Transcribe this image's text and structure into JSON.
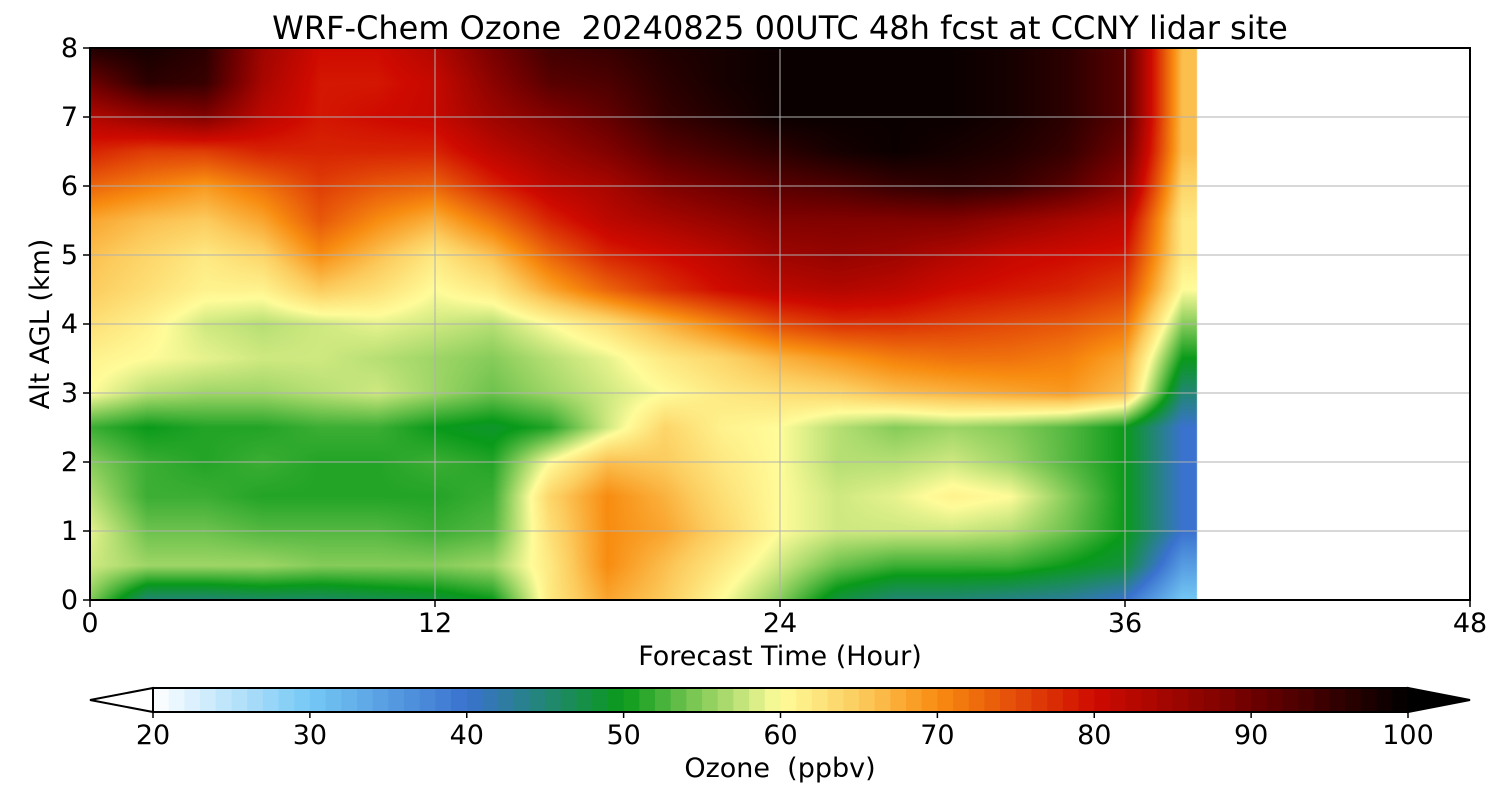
{
  "chart_data": {
    "type": "heatmap",
    "title": "WRF-Chem Ozone  20240825 00UTC 48h fcst at CCNY lidar site",
    "xlabel": "Forecast Time (Hour)",
    "ylabel": "Alt AGL (km)",
    "xlim": [
      0,
      48
    ],
    "ylim": [
      0,
      8
    ],
    "x_ticks": [
      0,
      12,
      24,
      36,
      48
    ],
    "y_ticks": [
      0,
      1,
      2,
      3,
      4,
      5,
      6,
      7,
      8
    ],
    "grid": true,
    "data_end_hour": 38.5,
    "z_label": "Ozone  (ppbv)",
    "z_range": [
      20,
      100
    ],
    "colorbar_ticks": [
      20,
      30,
      40,
      50,
      60,
      70,
      80,
      90,
      100
    ],
    "colorbar_extend": "both",
    "colorbar_stops": [
      {
        "v": 20,
        "c": "#ffffff"
      },
      {
        "v": 30,
        "c": "#74c8f5"
      },
      {
        "v": 40,
        "c": "#3a72cf"
      },
      {
        "v": 50,
        "c": "#0a9a1a"
      },
      {
        "v": 55,
        "c": "#86cc5a"
      },
      {
        "v": 60,
        "c": "#fffc9a"
      },
      {
        "v": 65,
        "c": "#fccc5e"
      },
      {
        "v": 70,
        "c": "#f88c10"
      },
      {
        "v": 80,
        "c": "#cf0a00"
      },
      {
        "v": 90,
        "c": "#6e0000"
      },
      {
        "v": 100,
        "c": "#000000"
      }
    ],
    "z_hours": [
      0,
      2,
      4,
      6,
      8,
      10,
      12,
      14,
      16,
      18,
      20,
      22,
      24,
      26,
      28,
      30,
      32,
      34,
      36,
      38
    ],
    "z_heights_km": [
      0,
      0.5,
      1,
      1.5,
      2,
      2.5,
      3,
      3.5,
      4,
      4.5,
      5,
      5.5,
      6,
      6.5,
      7,
      7.5,
      8
    ],
    "z_values": [
      [
        55,
        45,
        45,
        46,
        46,
        47,
        48,
        50,
        62,
        68,
        65,
        60,
        55,
        48,
        45,
        45,
        44,
        43,
        40,
        30
      ],
      [
        58,
        56,
        56,
        56,
        55,
        55,
        55,
        56,
        62,
        70,
        66,
        62,
        58,
        54,
        52,
        52,
        52,
        50,
        48,
        35
      ],
      [
        59,
        54,
        54,
        53,
        53,
        53,
        52,
        53,
        63,
        70,
        68,
        64,
        60,
        58,
        58,
        58,
        57,
        54,
        50,
        40
      ],
      [
        57,
        52,
        52,
        51,
        51,
        51,
        51,
        52,
        64,
        70,
        67,
        63,
        60,
        58,
        59,
        61,
        60,
        55,
        50,
        40
      ],
      [
        55,
        52,
        51,
        52,
        51,
        51,
        52,
        51,
        60,
        66,
        65,
        62,
        60,
        57,
        57,
        58,
        56,
        53,
        50,
        40
      ],
      [
        52,
        50,
        51,
        51,
        52,
        52,
        50,
        49,
        51,
        58,
        64,
        61,
        60,
        57,
        55,
        56,
        55,
        53,
        50,
        40
      ],
      [
        60,
        57,
        56,
        56,
        57,
        58,
        56,
        54,
        56,
        58,
        60,
        62,
        63,
        64,
        66,
        67,
        68,
        69,
        66,
        45
      ],
      [
        61,
        60,
        59,
        58,
        58,
        57,
        56,
        55,
        57,
        59,
        62,
        64,
        67,
        69,
        71,
        72,
        72,
        71,
        68,
        50
      ],
      [
        63,
        61,
        58,
        57,
        58,
        59,
        58,
        57,
        60,
        63,
        67,
        71,
        75,
        77,
        77,
        76,
        75,
        74,
        72,
        55
      ],
      [
        65,
        63,
        61,
        61,
        65,
        63,
        60,
        62,
        68,
        73,
        77,
        80,
        82,
        83,
        82,
        80,
        79,
        78,
        76,
        60
      ],
      [
        66,
        64,
        62,
        64,
        70,
        66,
        62,
        66,
        73,
        78,
        80,
        82,
        85,
        86,
        85,
        83,
        81,
        80,
        79,
        62
      ],
      [
        68,
        66,
        65,
        68,
        74,
        70,
        67,
        72,
        78,
        82,
        84,
        86,
        88,
        88,
        88,
        88,
        86,
        84,
        82,
        62
      ],
      [
        73,
        71,
        69,
        72,
        76,
        74,
        73,
        78,
        82,
        84,
        88,
        90,
        92,
        93,
        95,
        96,
        95,
        92,
        87,
        64
      ],
      [
        78,
        76,
        76,
        78,
        78,
        78,
        78,
        82,
        85,
        88,
        92,
        94,
        96,
        98,
        99,
        98,
        97,
        95,
        90,
        66
      ],
      [
        83,
        86,
        88,
        82,
        79,
        80,
        81,
        85,
        88,
        91,
        95,
        97,
        99,
        99,
        99,
        99,
        98,
        96,
        92,
        66
      ],
      [
        90,
        96,
        95,
        84,
        79,
        79,
        81,
        87,
        92,
        93,
        96,
        98,
        99,
        99,
        99,
        99,
        98,
        96,
        92,
        66
      ],
      [
        97,
        98,
        96,
        85,
        80,
        80,
        83,
        89,
        94,
        95,
        97,
        98,
        99,
        99,
        99,
        99,
        98,
        96,
        92,
        66
      ]
    ]
  }
}
